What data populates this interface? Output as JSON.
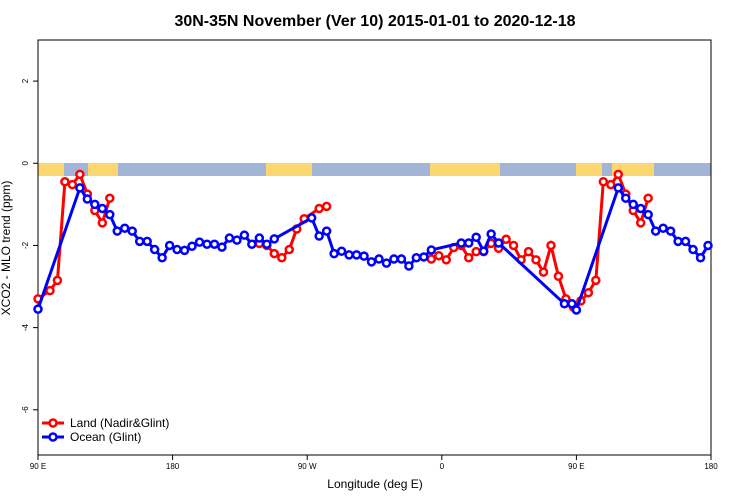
{
  "chart_data": {
    "type": "line",
    "title": "30N-35N November (Ver 10)   2015-01-01 to 2020-12-18",
    "x_label": "Longitude (deg E)",
    "y_label": "XCO2 - MLO trend (ppm)",
    "xlim": [
      90,
      540
    ],
    "ylim": [
      -7.1,
      3
    ],
    "xticks": [
      {
        "value": 90,
        "label": "90 E"
      },
      180,
      {
        "value": 270,
        "label": "90 W"
      },
      {
        "value": 360,
        "label": "0"
      },
      {
        "value": 450,
        "label": "90 E"
      },
      {
        "value": 540,
        "label": "180"
      }
    ],
    "yticks": [
      -6,
      -4,
      -2,
      0,
      2
    ],
    "legend": "bottom-left",
    "series": [
      {
        "name": "Land (Nadir&Glint)",
        "color": "#ff0000",
        "x": [
          90,
          98,
          103,
          108,
          113,
          118,
          123,
          128,
          133,
          138,
          188,
          238,
          243,
          248,
          253,
          258,
          263,
          268,
          278,
          283,
          318,
          353,
          358,
          363,
          368,
          373,
          378,
          383,
          388,
          393,
          398,
          403,
          408,
          413,
          418,
          423,
          428,
          433,
          438,
          443,
          448,
          453,
          458,
          463,
          468,
          473,
          478,
          483,
          488,
          493,
          498
        ],
        "values": [
          -3.3,
          -3.1,
          -2.85,
          -0.45,
          -0.52,
          -0.27,
          -0.75,
          -1.15,
          -1.45,
          -0.85,
          null,
          -1.95,
          -2.0,
          -2.2,
          -2.3,
          -2.1,
          -1.6,
          -1.35,
          -1.1,
          -1.05,
          null,
          -2.33,
          -2.25,
          -2.35,
          -2.05,
          -2.0,
          -2.3,
          -2.15,
          -2.15,
          -1.95,
          -2.07,
          -1.85,
          -2.0,
          -2.35,
          -2.15,
          -2.35,
          -2.65,
          -2.0,
          -2.75,
          -3.3,
          -3.5,
          -3.35,
          -3.15,
          -2.85,
          -0.45,
          -0.52,
          -0.27,
          -0.75,
          -1.15,
          -1.45,
          -0.85
        ]
      },
      {
        "name": "Ocean (Glint)",
        "color": "#0000ff",
        "x": [
          90,
          118,
          123,
          128,
          133,
          138,
          143,
          148,
          153,
          158,
          163,
          168,
          173,
          178,
          183,
          188,
          193,
          198,
          203,
          208,
          213,
          218,
          223,
          228,
          233,
          238,
          243,
          248,
          273,
          278,
          283,
          288,
          293,
          298,
          303,
          308,
          313,
          318,
          323,
          328,
          333,
          338,
          343,
          348,
          353,
          373,
          378,
          383,
          388,
          393,
          398,
          442,
          447,
          450,
          478,
          483,
          488,
          493,
          498,
          503,
          508,
          513,
          518,
          523,
          528,
          533,
          538
        ],
        "values": [
          -3.55,
          -0.6,
          -0.87,
          -1.0,
          -1.1,
          -1.25,
          -1.65,
          -1.58,
          -1.65,
          -1.9,
          -1.9,
          -2.1,
          -2.3,
          -2.0,
          -2.1,
          -2.12,
          -2.02,
          -1.92,
          -1.97,
          -1.97,
          -2.04,
          -1.82,
          -1.87,
          -1.75,
          -1.97,
          -1.82,
          -1.97,
          -1.84,
          -1.33,
          -1.77,
          -1.65,
          -2.2,
          -2.14,
          -2.23,
          -2.23,
          -2.26,
          -2.4,
          -2.33,
          -2.43,
          -2.33,
          -2.33,
          -2.5,
          -2.3,
          -2.28,
          -2.11,
          -1.94,
          -1.94,
          -1.8,
          -2.14,
          -1.72,
          -1.94,
          -3.42,
          -3.42,
          -3.57,
          -0.6,
          -0.85,
          -1.0,
          -1.1,
          -1.25,
          -1.65,
          -1.58,
          -1.65,
          -1.9,
          -1.9,
          -2.1,
          -2.3,
          -2.0
        ]
      }
    ]
  }
}
